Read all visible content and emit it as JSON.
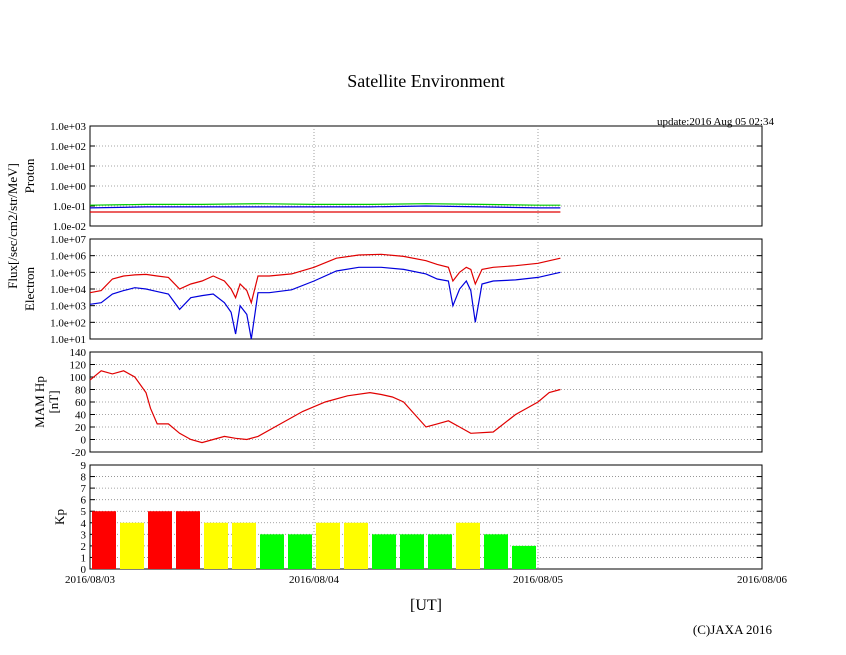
{
  "title": "Satellite Environment",
  "update_text": "update:2016 Aug 05 02:34",
  "copyright": "(C)JAXA 2016",
  "flux_label": "Flux[/sec/cm2/str/MeV]",
  "x_axis": {
    "label": "[UT]",
    "ticks": [
      "2016/08/03",
      "2016/08/04",
      "2016/08/05",
      "2016/08/06"
    ],
    "range_days": [
      0,
      3
    ]
  },
  "colors": {
    "red": "#e00000",
    "blue": "#0000dd",
    "green": "#00cc00",
    "kp_red": "#ff0000",
    "kp_yellow": "#ffff00",
    "kp_green": "#00ff00",
    "grid": "#888888"
  },
  "chart_data": [
    {
      "type": "line",
      "name": "proton",
      "ylabel": "Proton",
      "y_scale": "log",
      "ylim": [
        0.01,
        1000
      ],
      "y_ticks": [
        "1.0e-02",
        "1.0e-01",
        "1.0e+00",
        "1.0e+01",
        "1.0e+02",
        "1.0e+03"
      ],
      "series": [
        {
          "name": "proton-green",
          "color": "green",
          "x": [
            0,
            0.25,
            0.5,
            0.75,
            1.0,
            1.25,
            1.5,
            1.75,
            2.0,
            2.1
          ],
          "y": [
            0.11,
            0.12,
            0.12,
            0.13,
            0.12,
            0.12,
            0.13,
            0.12,
            0.11,
            0.11
          ]
        },
        {
          "name": "proton-blue",
          "color": "blue",
          "x": [
            0,
            0.25,
            0.5,
            0.75,
            1.0,
            1.25,
            1.5,
            1.75,
            2.0,
            2.1
          ],
          "y": [
            0.08,
            0.09,
            0.09,
            0.09,
            0.09,
            0.09,
            0.1,
            0.09,
            0.08,
            0.08
          ]
        },
        {
          "name": "proton-red",
          "color": "red",
          "x": [
            0,
            0.25,
            0.5,
            0.75,
            1.0,
            1.25,
            1.5,
            1.75,
            2.0,
            2.1
          ],
          "y": [
            0.05,
            0.05,
            0.05,
            0.05,
            0.05,
            0.05,
            0.05,
            0.05,
            0.05,
            0.05
          ]
        }
      ]
    },
    {
      "type": "line",
      "name": "electron",
      "ylabel": "Electron",
      "y_scale": "log",
      "ylim": [
        10,
        10000000
      ],
      "y_ticks": [
        "1.0e+01",
        "1.0e+02",
        "1.0e+03",
        "1.0e+04",
        "1.0e+05",
        "1.0e+06",
        "1.0e+07"
      ],
      "series": [
        {
          "name": "electron-red",
          "color": "red",
          "x": [
            0,
            0.05,
            0.1,
            0.15,
            0.2,
            0.25,
            0.3,
            0.35,
            0.4,
            0.45,
            0.5,
            0.55,
            0.6,
            0.63,
            0.65,
            0.67,
            0.7,
            0.72,
            0.75,
            0.8,
            0.9,
            1.0,
            1.1,
            1.2,
            1.3,
            1.4,
            1.5,
            1.55,
            1.6,
            1.62,
            1.65,
            1.68,
            1.7,
            1.72,
            1.75,
            1.8,
            1.9,
            2.0,
            2.1
          ],
          "y": [
            6000,
            8000,
            40000,
            60000,
            70000,
            75000,
            60000,
            50000,
            10000,
            20000,
            30000,
            60000,
            30000,
            10000,
            3000,
            20000,
            8000,
            1500,
            60000,
            60000,
            80000,
            200000,
            700000,
            1100000,
            1200000,
            900000,
            500000,
            300000,
            200000,
            30000,
            100000,
            200000,
            150000,
            20000,
            150000,
            200000,
            250000,
            350000,
            700000
          ]
        },
        {
          "name": "electron-blue",
          "color": "blue",
          "x": [
            0,
            0.05,
            0.1,
            0.15,
            0.2,
            0.25,
            0.3,
            0.35,
            0.4,
            0.45,
            0.5,
            0.55,
            0.6,
            0.63,
            0.65,
            0.67,
            0.7,
            0.72,
            0.75,
            0.8,
            0.9,
            1.0,
            1.1,
            1.2,
            1.3,
            1.4,
            1.5,
            1.55,
            1.6,
            1.62,
            1.65,
            1.68,
            1.7,
            1.72,
            1.75,
            1.8,
            1.9,
            2.0,
            2.1
          ],
          "y": [
            1200,
            1500,
            5000,
            8000,
            12000,
            10000,
            7000,
            5000,
            600,
            3000,
            4000,
            5000,
            1500,
            400,
            20,
            1000,
            300,
            10,
            6000,
            6000,
            9000,
            30000,
            120000,
            200000,
            200000,
            150000,
            80000,
            40000,
            30000,
            1000,
            10000,
            30000,
            8000,
            100,
            20000,
            30000,
            35000,
            50000,
            100000
          ]
        }
      ]
    },
    {
      "type": "line",
      "name": "mam-hp",
      "ylabel": "MAM Hp",
      "ylabel2": "[nT]",
      "ylim": [
        -20,
        140
      ],
      "y_ticks": [
        "-20",
        "0",
        "20",
        "40",
        "60",
        "80",
        "100",
        "120",
        "140"
      ],
      "series": [
        {
          "name": "mam-hp",
          "color": "red",
          "x": [
            0,
            0.05,
            0.1,
            0.15,
            0.2,
            0.25,
            0.27,
            0.3,
            0.35,
            0.4,
            0.45,
            0.5,
            0.55,
            0.6,
            0.65,
            0.7,
            0.75,
            0.85,
            0.95,
            1.05,
            1.15,
            1.25,
            1.3,
            1.35,
            1.4,
            1.45,
            1.5,
            1.55,
            1.6,
            1.65,
            1.7,
            1.8,
            1.9,
            2.0,
            2.05,
            2.1
          ],
          "y": [
            95,
            110,
            105,
            110,
            100,
            75,
            50,
            25,
            25,
            10,
            0,
            -5,
            0,
            5,
            2,
            0,
            5,
            25,
            45,
            60,
            70,
            75,
            72,
            68,
            60,
            40,
            20,
            25,
            30,
            20,
            10,
            12,
            40,
            60,
            75,
            80
          ]
        }
      ]
    },
    {
      "type": "bar",
      "name": "kp",
      "ylabel": "Kp",
      "ylim": [
        0,
        9
      ],
      "y_ticks": [
        "0",
        "1",
        "2",
        "3",
        "4",
        "5",
        "6",
        "7",
        "8",
        "9"
      ],
      "bar_width_days": 0.125,
      "values": [
        5,
        4,
        5,
        5,
        4,
        4,
        3,
        3,
        4,
        4,
        3,
        3,
        3,
        4,
        3,
        2
      ],
      "bar_colors": [
        "red",
        "yellow",
        "red",
        "red",
        "yellow",
        "yellow",
        "green",
        "green",
        "yellow",
        "yellow",
        "green",
        "green",
        "green",
        "yellow",
        "green",
        "green"
      ]
    }
  ]
}
